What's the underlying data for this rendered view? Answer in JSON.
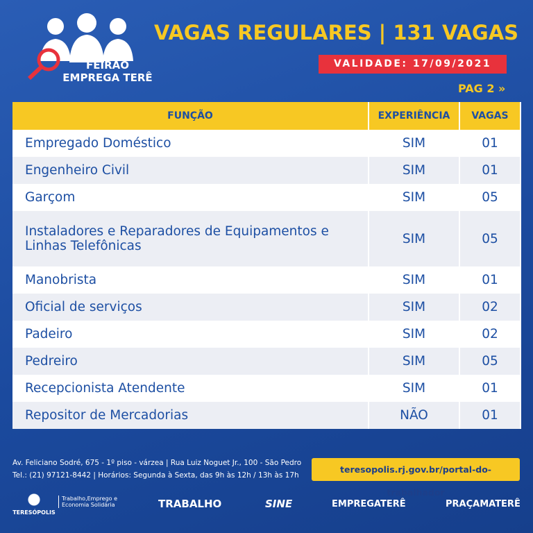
{
  "header": {
    "logo_line1": "FEIRÃO",
    "logo_line2": "EMPREGA TERÊ",
    "title": "VAGAS REGULARES | 131 VAGAS",
    "validity": "VALIDADE: 17/09/2021",
    "page": "PAG 2 »"
  },
  "table": {
    "columns": [
      "FUNÇÃO",
      "EXPERIÊNCIA",
      "VAGAS"
    ],
    "rows": [
      [
        "Empregado Doméstico",
        "SIM",
        "01"
      ],
      [
        "Engenheiro Civil",
        "SIM",
        "01"
      ],
      [
        "Garçom",
        "SIM",
        "05"
      ],
      [
        "Instaladores e Reparadores de Equipamentos e Linhas Telefônicas",
        "SIM",
        "05"
      ],
      [
        "Manobrista",
        "SIM",
        "01"
      ],
      [
        "Oficial de serviços",
        "SIM",
        "02"
      ],
      [
        "Padeiro",
        "SIM",
        "02"
      ],
      [
        "Pedreiro",
        "SIM",
        "05"
      ],
      [
        "Recepcionista Atendente",
        "SIM",
        "01"
      ],
      [
        "Repositor de Mercadorias",
        "NÃO",
        "01"
      ]
    ]
  },
  "footer": {
    "address_line1": "Av. Feliciano Sodré, 675 - 1º piso - várzea | Rua Luiz Noguet Jr., 100 - São Pedro",
    "address_line2": "Tel.: (21) 97121-8442 | Horários: Segunda à Sexta, das 9h às 12h / 13h às 17h",
    "url": "teresopolis.rj.gov.br/portal-do-trabalhador",
    "logos": {
      "prefeitura": "TERESÓPOLIS",
      "secretaria": "Trabalho,Emprego e Economia Solidária",
      "trabalho": "TRABALHO",
      "sine": "SINE",
      "empregatere": "EMPREGATERÊ",
      "pracamatere": "PRAÇAMATERÊ"
    }
  }
}
